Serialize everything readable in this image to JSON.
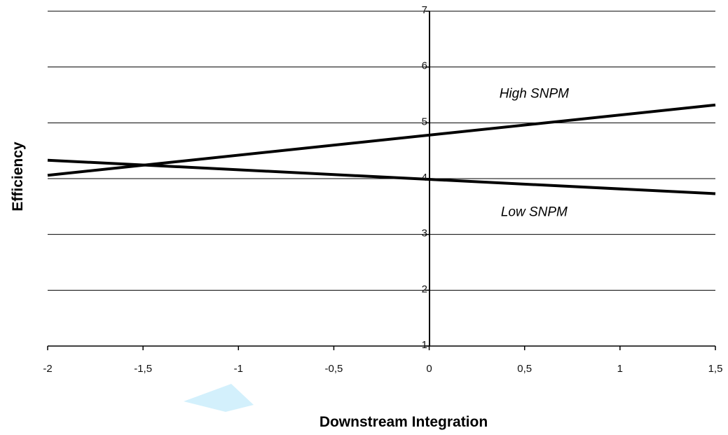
{
  "chart_data": {
    "type": "line",
    "title": "",
    "xlabel": "Downstream Integration",
    "ylabel": "Efficiency",
    "xlim": [
      -2,
      1.5
    ],
    "ylim": [
      1,
      7
    ],
    "x_ticks": [
      -2,
      -1.5,
      -1,
      -0.5,
      0,
      0.5,
      1,
      1.5
    ],
    "x_tick_labels": [
      "-2",
      "-1,5",
      "-1",
      "-0,5",
      "0",
      "0,5",
      "1",
      "1,5"
    ],
    "y_ticks": [
      1,
      2,
      3,
      4,
      5,
      6,
      7
    ],
    "y_tick_labels": [
      "1",
      "2",
      "3",
      "4",
      "5",
      "6",
      "7"
    ],
    "grid": "horizontal",
    "legend": "none",
    "series": [
      {
        "name": "High SNPM",
        "x": [
          -2,
          1.5
        ],
        "y": [
          4.06,
          5.32
        ],
        "label_at": [
          0.55,
          5.45
        ]
      },
      {
        "name": "Low SNPM",
        "x": [
          -2,
          1.5
        ],
        "y": [
          4.33,
          3.73
        ],
        "label_at": [
          0.55,
          3.33
        ]
      }
    ],
    "colors": {
      "line": "#000000",
      "grid": "#000000",
      "watermark": "#c8ecfb"
    }
  }
}
